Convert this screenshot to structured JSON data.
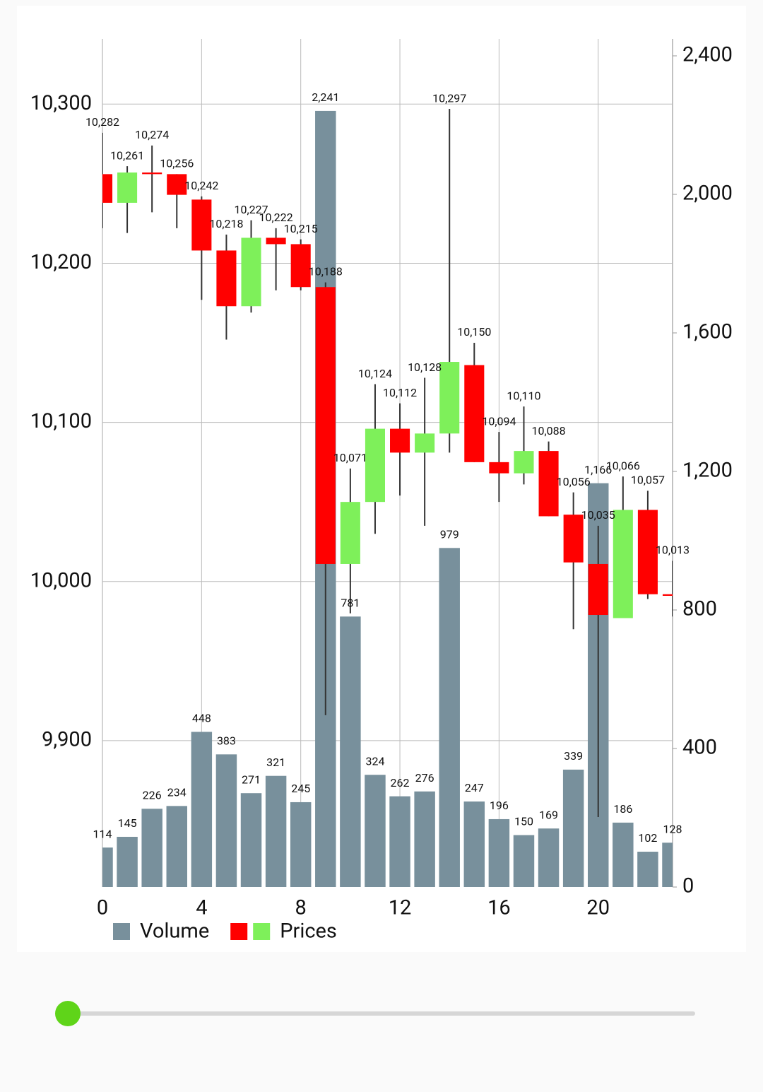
{
  "chart_data": {
    "type": "candlestick-volume",
    "xlim": [
      0,
      23
    ],
    "xticks": [
      0,
      4,
      8,
      12,
      16,
      20
    ],
    "ylim": [
      9808,
      10341
    ],
    "yticks": [
      {
        "value": 9900,
        "label": "9,900"
      },
      {
        "value": 10000,
        "label": "10,000"
      },
      {
        "value": 10100,
        "label": "10,100"
      },
      {
        "value": 10200,
        "label": "10,200"
      },
      {
        "value": 10300,
        "label": "10,300"
      }
    ],
    "y2lim": [
      0,
      2449
    ],
    "y2ticks": [
      0,
      400,
      800,
      {
        "value": 1200,
        "label": "1,200"
      },
      {
        "value": 1600,
        "label": "1,600"
      },
      {
        "value": 2000,
        "label": "2,000"
      },
      {
        "value": 2400,
        "label": "2,400"
      }
    ],
    "grid": true,
    "legend": "bottom-left",
    "series": [
      {
        "name": "Volume",
        "type": "bar",
        "axis": "y2",
        "color": "#78909c",
        "x": [
          0,
          1,
          2,
          3,
          4,
          5,
          6,
          7,
          8,
          9,
          10,
          11,
          12,
          13,
          14,
          15,
          16,
          17,
          18,
          19,
          20,
          21,
          22,
          23
        ],
        "values": [
          114,
          145,
          226,
          234,
          448,
          383,
          271,
          321,
          245,
          2241,
          781,
          324,
          262,
          276,
          979,
          247,
          196,
          150,
          169,
          339,
          1166,
          186,
          102,
          128
        ],
        "value_labels": [
          "114",
          "145",
          "226",
          "234",
          "448",
          "383",
          "271",
          "321",
          "245",
          "2,241",
          "781",
          "324",
          "262",
          "276",
          "979",
          "247",
          "196",
          "150",
          "169",
          "339",
          "1,166",
          "186",
          "102",
          "128"
        ]
      },
      {
        "name": "Prices",
        "type": "candlestick",
        "axis": "y",
        "up_color": "#7ef05a",
        "down_color": "#ff0000",
        "wick_color": "#333333",
        "x": [
          0,
          1,
          2,
          3,
          4,
          5,
          6,
          7,
          8,
          9,
          10,
          11,
          12,
          13,
          14,
          15,
          16,
          17,
          18,
          19,
          20,
          21,
          22,
          23
        ],
        "open": [
          10256,
          10238,
          10257,
          10256,
          10240,
          10208,
          10173,
          10216,
          10212,
          10185,
          10011,
          10050,
          10096,
          10081,
          10093,
          10136,
          10075,
          10068,
          10082,
          10042,
          10011,
          9977,
          10045,
          9992
        ],
        "high": [
          10282,
          10261,
          10274,
          10256,
          10242,
          10218,
          10227,
          10222,
          10215,
          10188,
          10071,
          10124,
          10112,
          10128,
          10297,
          10150,
          10094,
          10110,
          10088,
          10056,
          10035,
          10066,
          10057,
          10013
        ],
        "low": [
          10222,
          10219,
          10232,
          10222,
          10177,
          10152,
          10169,
          10183,
          10183,
          9916,
          9980,
          10030,
          10054,
          10035,
          10081,
          10075,
          10050,
          10061,
          10041,
          9970,
          9852,
          9977,
          9989,
          9978
        ],
        "close": [
          10238,
          10257,
          10256,
          10243,
          10208,
          10173,
          10216,
          10212,
          10185,
          10011,
          10050,
          10096,
          10081,
          10093,
          10138,
          10075,
          10068,
          10082,
          10041,
          10012,
          9979,
          10045,
          9992,
          9991
        ],
        "high_labels": [
          "10,282",
          "10,261",
          "10,274",
          "10,256",
          "10,242",
          "10,218",
          "10,227",
          "10,222",
          "10,215",
          "10,188",
          "10,071",
          "10,124",
          "10,112",
          "10,128",
          "10,297",
          "10,150",
          "10,094",
          "10,110",
          "10,088",
          "10,056",
          "10,035",
          "10,066",
          "10,057",
          "10,013"
        ]
      }
    ]
  }
}
